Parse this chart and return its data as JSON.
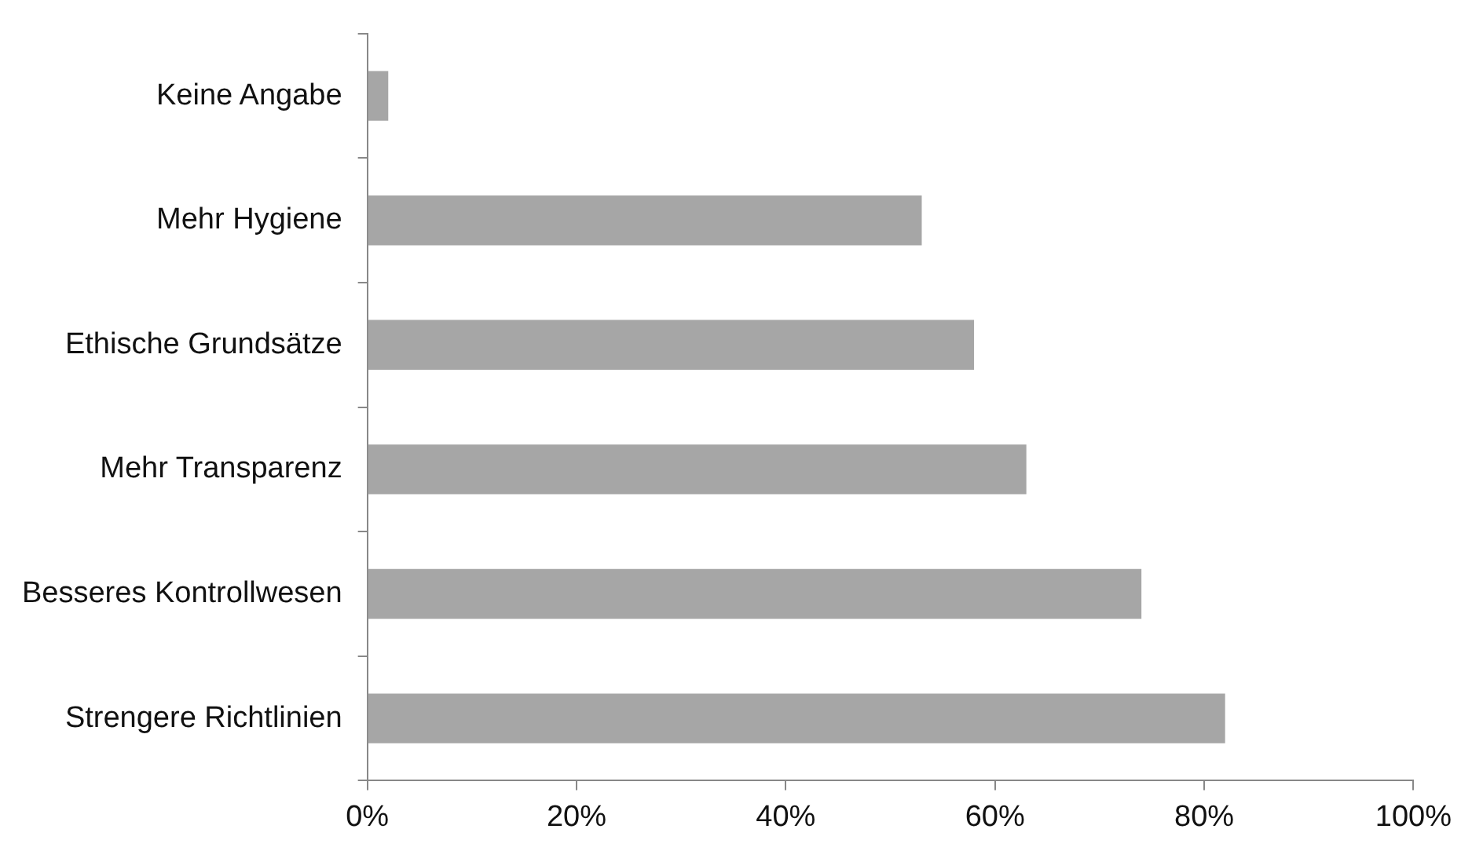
{
  "chart_data": {
    "type": "bar",
    "orientation": "horizontal",
    "categories": [
      "Keine Angabe",
      "Mehr Hygiene",
      "Ethische Grundsätze",
      "Mehr Transparenz",
      "Besseres Kontrollwesen",
      "Strengere Richtlinien"
    ],
    "values": [
      2,
      53,
      58,
      63,
      74,
      82
    ],
    "color": "#a6a6a6",
    "xlim": [
      0,
      100
    ],
    "xticks": [
      {
        "value": 0,
        "label": "0%"
      },
      {
        "value": 20,
        "label": "20%"
      },
      {
        "value": 40,
        "label": "40%"
      },
      {
        "value": 60,
        "label": "60%"
      },
      {
        "value": 80,
        "label": "80%"
      },
      {
        "value": 100,
        "label": "100%"
      }
    ],
    "grid": false,
    "legend": false
  }
}
